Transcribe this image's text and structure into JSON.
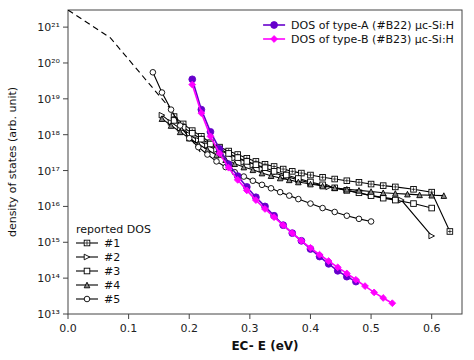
{
  "chart_data": {
    "type": "line",
    "x_label": "EC- E (eV)",
    "y_label": "density of states (arb. unit)",
    "log": "y",
    "xlim": [
      0.0,
      0.65
    ],
    "ylim": [
      10000000000000.0,
      3e+21
    ],
    "xticks": [
      {
        "value": 0.0,
        "label": "0.0"
      },
      0.1,
      0.2,
      0.3,
      0.4,
      0.5,
      0.6
    ],
    "yticks": [
      {
        "value": 10000000000000.0,
        "label": "10¹³"
      },
      {
        "value": 100000000000000.0,
        "label": "10¹⁴"
      },
      {
        "value": 1000000000000000.0,
        "label": "10¹⁵"
      },
      {
        "value": 1e+16,
        "label": "10¹⁶"
      },
      {
        "value": 1e+17,
        "label": "10¹⁷"
      },
      {
        "value": 1e+18,
        "label": "10¹⁸"
      },
      {
        "value": 1e+19,
        "label": "10¹⁹"
      },
      {
        "value": 1e+20,
        "label": "10²⁰"
      },
      {
        "value": 1e+21,
        "label": "10²¹"
      }
    ],
    "grid": false,
    "legend": "lower left",
    "legend_title": "reported DOS",
    "series": [
      {
        "x": [
          0.0,
          0.07,
          0.12,
          0.17,
          0.22
        ],
        "values": [
          3e+21,
          5e+20,
          5e+19,
          5e+18,
          3e+17
        ],
        "color": "black",
        "line_style": "dashed"
      },
      {
        "name": "#1",
        "color": "black",
        "marker": "square-plus",
        "x": [
          0.175,
          0.19,
          0.205,
          0.22,
          0.235,
          0.25,
          0.265,
          0.28,
          0.295,
          0.31,
          0.325,
          0.34,
          0.355,
          0.37,
          0.385,
          0.4,
          0.42,
          0.44,
          0.46,
          0.48,
          0.5,
          0.52,
          0.54,
          0.57,
          0.6,
          0.63
        ],
        "values": [
          3.2e+18,
          2e+18,
          1.3e+18,
          9e+17,
          6e+17,
          4.5e+17,
          3.5e+17,
          2.8e+17,
          2.2e+17,
          1.8e+17,
          1.5e+17,
          1.3e+17,
          1.1e+17,
          9.5e+16,
          8.5e+16,
          7.5e+16,
          6.5e+16,
          5.8e+16,
          5.2e+16,
          4.7e+16,
          4.2e+16,
          3.8e+16,
          3.5e+16,
          3e+16,
          2.5e+16,
          2000000000000000.0
        ]
      },
      {
        "name": "#2",
        "color": "black",
        "marker": "triangle-right",
        "x": [
          0.155,
          0.17,
          0.185,
          0.2,
          0.215,
          0.23,
          0.245,
          0.26,
          0.275,
          0.29,
          0.305,
          0.32,
          0.34,
          0.36,
          0.38,
          0.4,
          0.43,
          0.46,
          0.5,
          0.55,
          0.6
        ],
        "values": [
          3.5e+18,
          2.2e+18,
          1.5e+18,
          1e+18,
          7e+17,
          5e+17,
          3.8e+17,
          2.8e+17,
          2.2e+17,
          1.7e+17,
          1.4e+17,
          1.1e+17,
          8.5e+16,
          6.8e+16,
          5.5e+16,
          4.5e+16,
          3.5e+16,
          2.8e+16,
          2e+16,
          1.5e+16,
          1500000000000000.0
        ]
      },
      {
        "name": "#3",
        "color": "black",
        "marker": "square",
        "x": [
          0.175,
          0.19,
          0.205,
          0.22,
          0.235,
          0.25,
          0.265,
          0.28,
          0.295,
          0.31,
          0.325,
          0.34,
          0.36,
          0.38,
          0.4,
          0.42,
          0.44,
          0.46,
          0.48,
          0.5,
          0.52,
          0.54,
          0.57,
          0.6
        ],
        "values": [
          2.5e+18,
          1.6e+18,
          1.1e+18,
          7.5e+17,
          5.5e+17,
          4e+17,
          3e+17,
          2.3e+17,
          1.8e+17,
          1.45e+17,
          1.2e+17,
          9.5e+16,
          7.5e+16,
          6e+16,
          4.8e+16,
          4e+16,
          3.3e+16,
          2.8e+16,
          2.4e+16,
          2e+16,
          1.7e+16,
          1.5e+16,
          1.2e+16,
          9000000000000000.0
        ]
      },
      {
        "name": "#4",
        "color": "black",
        "marker": "triangle-up-gray",
        "x": [
          0.155,
          0.17,
          0.185,
          0.2,
          0.215,
          0.23,
          0.245,
          0.26,
          0.275,
          0.29,
          0.305,
          0.32,
          0.335,
          0.35,
          0.365,
          0.38,
          0.4,
          0.42,
          0.44,
          0.46,
          0.48,
          0.5,
          0.52,
          0.54,
          0.56,
          0.58,
          0.6,
          0.62
        ],
        "values": [
          2.8e+18,
          1.8e+18,
          1.2e+18,
          8e+17,
          5.5e+17,
          3.8e+17,
          2.7e+17,
          2e+17,
          1.55e+17,
          1.25e+17,
          1.05e+17,
          8.5e+16,
          7.2e+16,
          6.2e+16,
          5.5e+16,
          4.8e+16,
          4.2e+16,
          3.7e+16,
          3.3e+16,
          3e+16,
          2.8e+16,
          2.6e+16,
          2.4e+16,
          2.3e+16,
          2.2e+16,
          2.1e+16,
          2.05e+16,
          2e+16
        ]
      },
      {
        "name": "#5",
        "color": "black",
        "marker": "circle",
        "x": [
          0.14,
          0.155,
          0.17,
          0.185,
          0.2,
          0.215,
          0.23,
          0.245,
          0.26,
          0.275,
          0.29,
          0.305,
          0.32,
          0.335,
          0.35,
          0.365,
          0.38,
          0.4,
          0.42,
          0.44,
          0.46,
          0.48,
          0.5
        ],
        "values": [
          5.5e+19,
          1.5e+19,
          5e+18,
          1.8e+18,
          8e+17,
          4.5e+17,
          2.8e+17,
          1.8e+17,
          1.25e+17,
          9e+16,
          6.8e+16,
          5.2e+16,
          4e+16,
          3.2e+16,
          2.5e+16,
          2e+16,
          1.6e+16,
          1.2e+16,
          9000000000000000.0,
          7000000000000000.0,
          5500000000000000.0,
          4500000000000000.0,
          3800000000000000.0
        ]
      },
      {
        "name": "DOS of type-A (#B22) μc-Si:H",
        "color": "#6600cc",
        "marker": "circle-filled",
        "legend": "upper right",
        "x": [
          0.205,
          0.22,
          0.235,
          0.25,
          0.265,
          0.28,
          0.295,
          0.31,
          0.325,
          0.34,
          0.355,
          0.37,
          0.385,
          0.4,
          0.415,
          0.43,
          0.445,
          0.46,
          0.475
        ],
        "values": [
          3.5e+19,
          5e+18,
          1.2e+18,
          4e+17,
          1.5e+17,
          7e+16,
          3.5e+16,
          1.8e+16,
          1e+16,
          5500000000000000.0,
          3000000000000000.0,
          1800000000000000.0,
          1100000000000000.0,
          650000000000000.0,
          400000000000000.0,
          250000000000000.0,
          160000000000000.0,
          110000000000000.0,
          80000000000000.0
        ]
      },
      {
        "name": "DOS of type-B (#B23) μc-Si:H",
        "color": "#ff00ff",
        "marker": "diamond-filled",
        "legend": "upper right",
        "x": [
          0.205,
          0.22,
          0.235,
          0.25,
          0.265,
          0.28,
          0.295,
          0.31,
          0.325,
          0.34,
          0.355,
          0.37,
          0.385,
          0.4,
          0.415,
          0.43,
          0.445,
          0.46,
          0.475,
          0.49,
          0.505,
          0.52,
          0.535
        ],
        "values": [
          2.5e+19,
          4e+18,
          9e+17,
          3e+17,
          1.2e+17,
          5.5e+16,
          2.8e+16,
          1.5e+16,
          8500000000000000.0,
          5000000000000000.0,
          3000000000000000.0,
          1800000000000000.0,
          1100000000000000.0,
          700000000000000.0,
          450000000000000.0,
          300000000000000.0,
          200000000000000.0,
          135000000000000.0,
          90000000000000.0,
          60000000000000.0,
          40000000000000.0,
          28000000000000.0,
          20000000000000.0
        ]
      }
    ]
  }
}
